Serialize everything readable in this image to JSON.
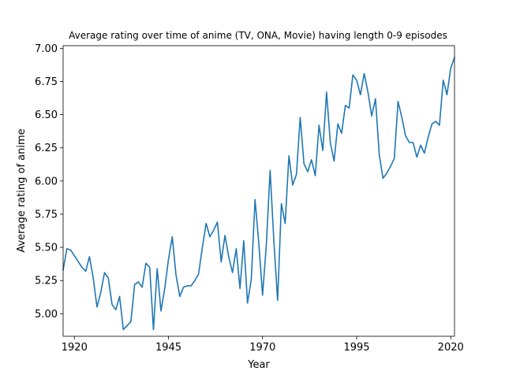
{
  "chart_data": {
    "type": "line",
    "title": "Average rating over time of anime (TV, ONA, Movie) having length 0-9 episodes",
    "xlabel": "Year",
    "ylabel": "Average rating of anime",
    "xlim": [
      1917,
      2021
    ],
    "ylim": [
      4.83,
      7.02
    ],
    "grid": false,
    "line_color": "#1f77b4",
    "x_ticks": [
      1920,
      1945,
      1970,
      1995,
      2020
    ],
    "x_tick_labels": [
      "1920",
      "1945",
      "1970",
      "1995",
      "2020"
    ],
    "y_ticks": [
      5.0,
      5.25,
      5.5,
      5.75,
      6.0,
      6.25,
      6.5,
      6.75,
      7.0
    ],
    "y_tick_labels": [
      "5.00",
      "5.25",
      "5.50",
      "5.75",
      "6.00",
      "6.25",
      "6.50",
      "6.75",
      "7.00"
    ],
    "series": [
      {
        "x": [
          1917,
          1918,
          1919,
          1922,
          1923,
          1924,
          1925,
          1926,
          1927,
          1928,
          1929,
          1930,
          1931,
          1932,
          1933,
          1934,
          1935,
          1936,
          1937,
          1938,
          1939,
          1940,
          1941,
          1942,
          1943,
          1944,
          1945,
          1946,
          1947,
          1948,
          1949,
          1950,
          1951,
          1952,
          1953,
          1954,
          1955,
          1956,
          1957,
          1958,
          1959,
          1960,
          1961,
          1962,
          1963,
          1964,
          1965,
          1966,
          1967,
          1968,
          1969,
          1970,
          1971,
          1972,
          1973,
          1974,
          1975,
          1976,
          1977,
          1978,
          1979,
          1980,
          1981,
          1982,
          1983,
          1984,
          1985,
          1986,
          1987,
          1988,
          1989,
          1990,
          1991,
          1992,
          1993,
          1994,
          1995,
          1996,
          1997,
          1998,
          1999,
          2000,
          2001,
          2002,
          2003,
          2004,
          2005,
          2006,
          2007,
          2008,
          2009,
          2010,
          2011,
          2012,
          2013,
          2014,
          2015,
          2016,
          2017,
          2018,
          2019,
          2020,
          2021
        ],
        "values": [
          5.33,
          5.49,
          5.48,
          5.35,
          5.32,
          5.43,
          5.27,
          5.05,
          5.16,
          5.31,
          5.27,
          5.07,
          5.03,
          5.13,
          4.88,
          4.91,
          4.94,
          5.22,
          5.24,
          5.2,
          5.38,
          5.35,
          4.88,
          5.34,
          5.02,
          5.19,
          5.41,
          5.58,
          5.29,
          5.13,
          5.2,
          5.21,
          5.21,
          5.25,
          5.3,
          5.5,
          5.68,
          5.58,
          5.63,
          5.69,
          5.39,
          5.59,
          5.43,
          5.31,
          5.49,
          5.19,
          5.55,
          5.08,
          5.26,
          5.86,
          5.53,
          5.14,
          5.52,
          6.08,
          5.55,
          5.1,
          5.83,
          5.68,
          6.19,
          5.97,
          6.05,
          6.48,
          6.13,
          6.07,
          6.16,
          6.04,
          6.42,
          6.23,
          6.67,
          6.29,
          6.15,
          6.43,
          6.36,
          6.57,
          6.55,
          6.8,
          6.76,
          6.65,
          6.81,
          6.67,
          6.49,
          6.62,
          6.2,
          6.02,
          6.06,
          6.11,
          6.17,
          6.6,
          6.48,
          6.34,
          6.29,
          6.29,
          6.18,
          6.27,
          6.21,
          6.33,
          6.43,
          6.45,
          6.42,
          6.76,
          6.65,
          6.85,
          6.93
        ]
      }
    ]
  }
}
